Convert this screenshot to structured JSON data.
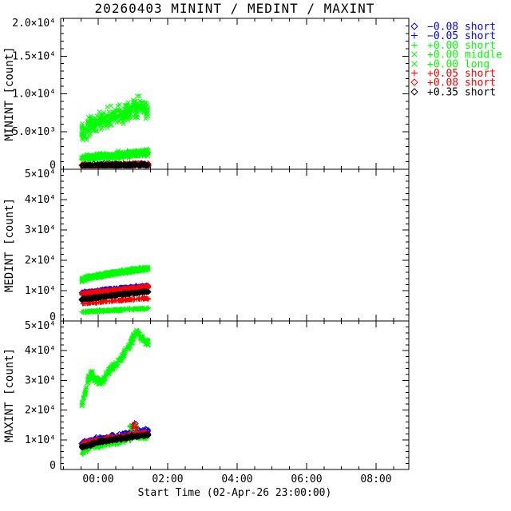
{
  "chart_data": {
    "type": "scatter",
    "title": "20260403 MININT / MEDINT / MAXINT",
    "xlabel": "Start Time (02-Apr-26 23:00:00)",
    "grid": false,
    "legend_position": "top-right",
    "background": "#ffffff",
    "axis_color": "#000000",
    "seed": 42,
    "x_range_hours": [
      -1.08,
      8.94
    ],
    "x_minor_step": 0.5,
    "x_ticks": [
      {
        "h": 0,
        "label": "00:00"
      },
      {
        "h": 2,
        "label": "02:00"
      },
      {
        "h": 4,
        "label": "04:00"
      },
      {
        "h": 6,
        "label": "06:00"
      },
      {
        "h": 8,
        "label": "08:00"
      }
    ],
    "legend": [
      {
        "symbol": "diamond",
        "color": "#0000ff",
        "label": "−0.08 short"
      },
      {
        "symbol": "plus",
        "color": "#0000ff",
        "label": "−0.05 short"
      },
      {
        "symbol": "plus",
        "color": "#00ff00",
        "label": "+0.00 short"
      },
      {
        "symbol": "x",
        "color": "#00ff00",
        "label": "+0.00 middle"
      },
      {
        "symbol": "x",
        "color": "#00ff00",
        "label": "+0.00 long"
      },
      {
        "symbol": "plus",
        "color": "#ff0000",
        "label": "+0.05 short"
      },
      {
        "symbol": "diamond",
        "color": "#ff0000",
        "label": "+0.08 short"
      },
      {
        "symbol": "diamond",
        "color": "#000000",
        "label": "+0.35 short"
      }
    ],
    "panels": [
      {
        "name": "MININT",
        "ylabel": "MININT [count]",
        "ylim": [
          0,
          20000
        ],
        "y_minor_step": 1000,
        "y_major_step": 5000,
        "yticks": [
          {
            "v": 0,
            "label": "0"
          },
          {
            "v": 5000,
            "label": "5.0×10³"
          },
          {
            "v": 10000,
            "label": "1.0×10⁴"
          },
          {
            "v": 15000,
            "label": "1.5×10⁴"
          },
          {
            "v": 20000,
            "label": "2.0×10⁴"
          }
        ],
        "clusters": [
          {
            "series": "−0.08 short",
            "symbol": "diamond",
            "color": "#0000ff",
            "n": 50,
            "spread": 260,
            "trend": [
              [
                -0.48,
                520
              ],
              [
                1.45,
                640
              ]
            ]
          },
          {
            "series": "−0.05 short",
            "symbol": "plus",
            "color": "#0000ff",
            "n": 50,
            "spread": 260,
            "trend": [
              [
                -0.48,
                500
              ],
              [
                1.45,
                620
              ]
            ]
          },
          {
            "series": "+0.00 short",
            "symbol": "plus",
            "color": "#00ff00",
            "n": 300,
            "spread": 550,
            "trend": [
              [
                -0.48,
                1500
              ],
              [
                0.5,
                1800
              ],
              [
                1.45,
                2150
              ]
            ]
          },
          {
            "series": "+0.00 middle",
            "symbol": "x",
            "color": "#00ff00",
            "n": 130,
            "spread": 500,
            "trend": [
              [
                -0.48,
                1600
              ],
              [
                1.45,
                2250
              ]
            ]
          },
          {
            "series": "+0.00 long",
            "symbol": "x",
            "color": "#00ff00",
            "n": 300,
            "spread": 1500,
            "trend": [
              [
                -0.48,
                4900
              ],
              [
                -0.25,
                5700
              ],
              [
                0.0,
                6300
              ],
              [
                0.35,
                6900
              ],
              [
                0.7,
                7300
              ],
              [
                1.0,
                7900
              ],
              [
                1.25,
                8400
              ],
              [
                1.45,
                7800
              ]
            ]
          },
          {
            "series": "+0.05 short",
            "symbol": "plus",
            "color": "#ff0000",
            "n": 160,
            "spread": 260,
            "trend": [
              [
                -0.48,
                480
              ],
              [
                1.45,
                640
              ]
            ]
          },
          {
            "series": "+0.08 short",
            "symbol": "diamond",
            "color": "#ff0000",
            "n": 100,
            "spread": 250,
            "trend": [
              [
                -0.48,
                500
              ],
              [
                1.45,
                650
              ]
            ]
          },
          {
            "series": "+0.35 short",
            "symbol": "diamond",
            "color": "#000000",
            "n": 150,
            "spread": 230,
            "trend": [
              [
                -0.48,
                470
              ],
              [
                1.45,
                600
              ]
            ]
          }
        ]
      },
      {
        "name": "MEDINT",
        "ylabel": "MEDINT [count]",
        "ylim": [
          0,
          50000
        ],
        "y_minor_step": 2000,
        "y_major_step": 10000,
        "yticks": [
          {
            "v": 0,
            "label": "0"
          },
          {
            "v": 10000,
            "label": "1×10⁴"
          },
          {
            "v": 20000,
            "label": "2×10⁴"
          },
          {
            "v": 30000,
            "label": "3×10⁴"
          },
          {
            "v": 40000,
            "label": "4×10⁴"
          },
          {
            "v": 50000,
            "label": "5×10⁴"
          }
        ],
        "clusters": [
          {
            "series": "−0.08 short",
            "symbol": "diamond",
            "color": "#0000ff",
            "n": 140,
            "spread": 450,
            "trend": [
              [
                -0.48,
                9300
              ],
              [
                0.3,
                10300
              ],
              [
                1.45,
                11600
              ]
            ]
          },
          {
            "series": "−0.05 short",
            "symbol": "plus",
            "color": "#0000ff",
            "n": 110,
            "spread": 400,
            "trend": [
              [
                -0.48,
                8900
              ],
              [
                1.45,
                11100
              ]
            ]
          },
          {
            "series": "+0.00 short",
            "symbol": "plus",
            "color": "#00ff00",
            "n": 260,
            "spread": 350,
            "trend": [
              [
                -0.48,
                2900
              ],
              [
                0.3,
                3500
              ],
              [
                1.45,
                4100
              ]
            ]
          },
          {
            "series": "+0.00 middle",
            "symbol": "x",
            "color": "#00ff00",
            "n": 180,
            "spread": 450,
            "trend": [
              [
                -0.48,
                13000
              ],
              [
                -0.3,
                13900
              ],
              [
                0.0,
                14600
              ],
              [
                0.5,
                15500
              ],
              [
                1.0,
                16300
              ],
              [
                1.45,
                17000
              ]
            ]
          },
          {
            "series": "+0.00 long",
            "symbol": "x",
            "color": "#00ff00",
            "n": 260,
            "spread": 500,
            "trend": [
              [
                -0.48,
                13600
              ],
              [
                -0.3,
                14500
              ],
              [
                0.0,
                15200
              ],
              [
                0.5,
                16100
              ],
              [
                1.0,
                16900
              ],
              [
                1.45,
                17600
              ]
            ]
          },
          {
            "series": "+0.05 short",
            "symbol": "plus",
            "color": "#ff0000",
            "n": 170,
            "spread": 330,
            "trend": [
              [
                -0.48,
                5700
              ],
              [
                0.3,
                6500
              ],
              [
                1.45,
                7500
              ]
            ]
          },
          {
            "series": "+0.08 short",
            "symbol": "diamond",
            "color": "#ff0000",
            "n": 150,
            "spread": 420,
            "trend": [
              [
                -0.48,
                9000
              ],
              [
                0.3,
                9900
              ],
              [
                1.45,
                11300
              ]
            ]
          },
          {
            "series": "+0.35 short",
            "symbol": "diamond",
            "color": "#000000",
            "n": 190,
            "spread": 330,
            "trend": [
              [
                -0.48,
                7100
              ],
              [
                0.3,
                8200
              ],
              [
                1.45,
                9800
              ]
            ]
          }
        ]
      },
      {
        "name": "MAXINT",
        "ylabel": "MAXINT [count]",
        "ylim": [
          0,
          50000
        ],
        "y_minor_step": 2000,
        "y_major_step": 10000,
        "yticks": [
          {
            "v": 0,
            "label": "0"
          },
          {
            "v": 10000,
            "label": "1×10⁴"
          },
          {
            "v": 20000,
            "label": "2×10⁴"
          },
          {
            "v": 30000,
            "label": "3×10⁴"
          },
          {
            "v": 40000,
            "label": "4×10⁴"
          },
          {
            "v": 50000,
            "label": "5×10⁴"
          }
        ],
        "clusters": [
          {
            "series": "−0.08 short",
            "symbol": "diamond",
            "color": "#0000ff",
            "n": 130,
            "spread": 800,
            "trend": [
              [
                -0.48,
                8800
              ],
              [
                0.0,
                10300
              ],
              [
                0.5,
                11000
              ],
              [
                1.0,
                12400
              ],
              [
                1.3,
                13100
              ],
              [
                1.45,
                12900
              ]
            ]
          },
          {
            "series": "−0.08 short",
            "symbol": "diamond",
            "color": "#0000ff",
            "n": 8,
            "spread": 900,
            "trend": [
              [
                0.95,
                14000
              ],
              [
                1.08,
                15200
              ]
            ]
          },
          {
            "series": "−0.05 short",
            "symbol": "plus",
            "color": "#0000ff",
            "n": 90,
            "spread": 700,
            "trend": [
              [
                -0.48,
                8400
              ],
              [
                0.0,
                9900
              ],
              [
                0.5,
                10700
              ],
              [
                1.45,
                12400
              ]
            ]
          },
          {
            "series": "+0.00 short",
            "symbol": "plus",
            "color": "#00ff00",
            "n": 230,
            "spread": 850,
            "trend": [
              [
                -0.48,
                5600
              ],
              [
                -0.2,
                7600
              ],
              [
                0.1,
                8200
              ],
              [
                0.5,
                9000
              ],
              [
                0.85,
                9900
              ],
              [
                1.05,
                11200
              ],
              [
                1.45,
                10900
              ]
            ]
          },
          {
            "series": "+0.00 short",
            "symbol": "plus",
            "color": "#00ff00",
            "n": 28,
            "spread": 1500,
            "trend": [
              [
                0.9,
                13500
              ],
              [
                1.0,
                14800
              ],
              [
                1.12,
                13500
              ]
            ]
          },
          {
            "series": "+0.00 middle",
            "symbol": "x",
            "color": "#00ff00",
            "n": 60,
            "spread": 700,
            "trend": [
              [
                -0.48,
                7800
              ],
              [
                1.45,
                11500
              ]
            ]
          },
          {
            "series": "+0.00 long",
            "symbol": "x",
            "color": "#00ff00",
            "n": 300,
            "spread": 1400,
            "trend": [
              [
                -0.48,
                21500
              ],
              [
                -0.38,
                25500
              ],
              [
                -0.3,
                29500
              ],
              [
                -0.22,
                32800
              ],
              [
                -0.1,
                30300
              ],
              [
                0.05,
                29400
              ],
              [
                0.2,
                30800
              ],
              [
                0.35,
                33800
              ],
              [
                0.55,
                35800
              ],
              [
                0.75,
                39000
              ],
              [
                0.9,
                42000
              ],
              [
                1.0,
                44300
              ],
              [
                1.1,
                46200
              ],
              [
                1.2,
                45200
              ],
              [
                1.3,
                43800
              ],
              [
                1.45,
                42400
              ]
            ]
          },
          {
            "series": "+0.05 short",
            "symbol": "plus",
            "color": "#ff0000",
            "n": 180,
            "spread": 900,
            "trend": [
              [
                -0.48,
                7900
              ],
              [
                0.0,
                9500
              ],
              [
                0.5,
                10400
              ],
              [
                1.0,
                11700
              ],
              [
                1.45,
                12100
              ]
            ]
          },
          {
            "series": "+0.05 short",
            "symbol": "plus",
            "color": "#ff0000",
            "n": 12,
            "spread": 1200,
            "trend": [
              [
                0.95,
                13800
              ],
              [
                1.05,
                15300
              ],
              [
                1.12,
                13800
              ]
            ]
          },
          {
            "series": "+0.08 short",
            "symbol": "diamond",
            "color": "#ff0000",
            "n": 120,
            "spread": 700,
            "trend": [
              [
                -0.48,
                8300
              ],
              [
                0.0,
                9800
              ],
              [
                0.5,
                10600
              ],
              [
                1.45,
                12300
              ]
            ]
          },
          {
            "series": "+0.35 short",
            "symbol": "diamond",
            "color": "#000000",
            "n": 190,
            "spread": 500,
            "trend": [
              [
                -0.48,
                7400
              ],
              [
                0.0,
                9200
              ],
              [
                0.5,
                10100
              ],
              [
                1.0,
                11100
              ],
              [
                1.45,
                11600
              ]
            ]
          }
        ]
      }
    ]
  }
}
